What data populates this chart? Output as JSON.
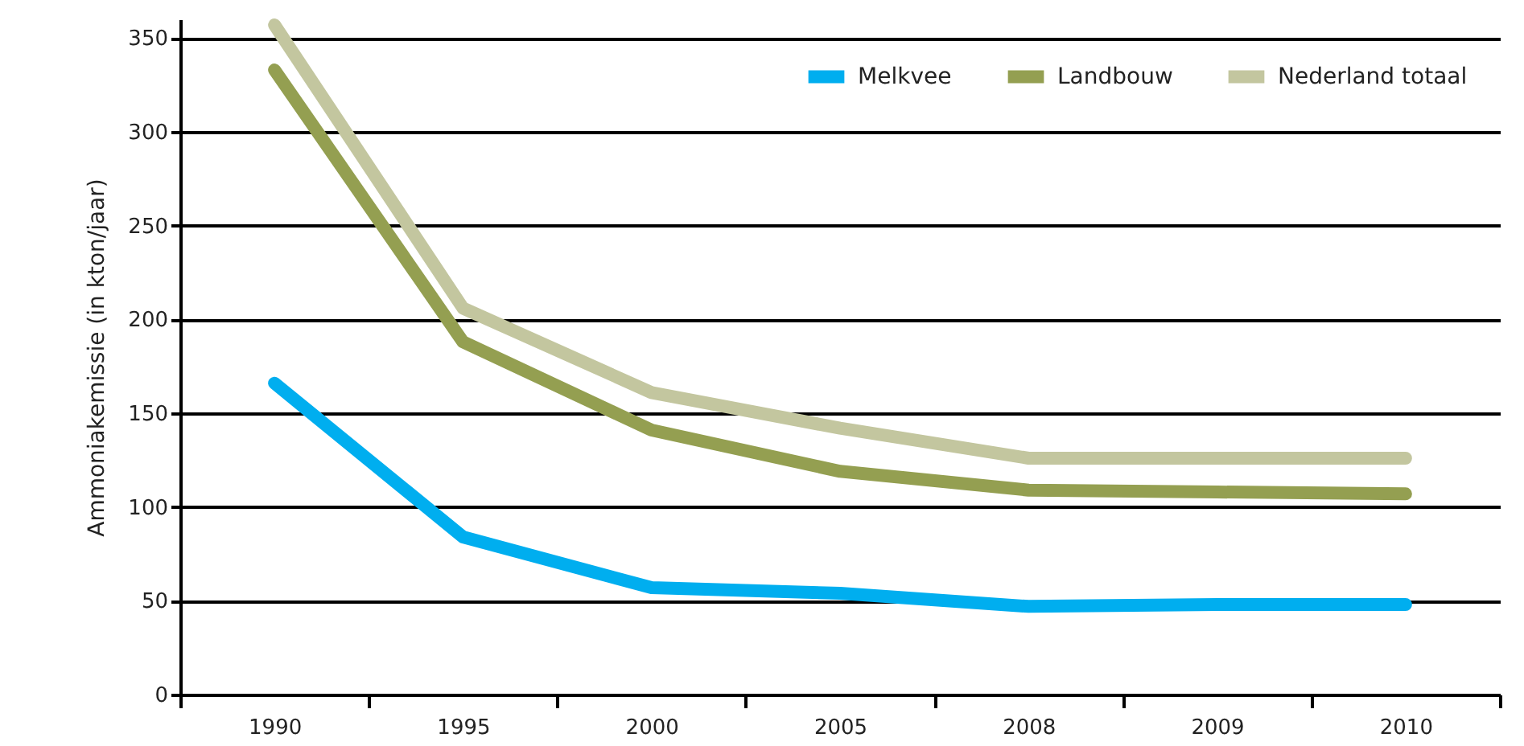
{
  "chart_data": {
    "type": "line",
    "ylabel": "Ammoniakemissie (in kton/jaar)",
    "categories": [
      "1990",
      "1995",
      "2000",
      "2005",
      "2008",
      "2009",
      "2010"
    ],
    "series": [
      {
        "name": "Melkvee",
        "color": "#00aeef",
        "values": [
          166,
          84,
          57,
          54,
          47,
          48,
          48
        ]
      },
      {
        "name": "Landbouw",
        "color": "#949f51",
        "values": [
          333,
          188,
          141,
          119,
          109,
          108,
          107
        ]
      },
      {
        "name": "Nederland totaal",
        "color": "#c3c69f",
        "values": [
          357,
          206,
          161,
          142,
          126,
          126,
          126
        ]
      }
    ],
    "ylim": [
      0,
      360
    ],
    "yticks": [
      0,
      50,
      100,
      150,
      200,
      250,
      300,
      350
    ],
    "grid": "y",
    "legend": "top right",
    "line_style": "solid"
  }
}
